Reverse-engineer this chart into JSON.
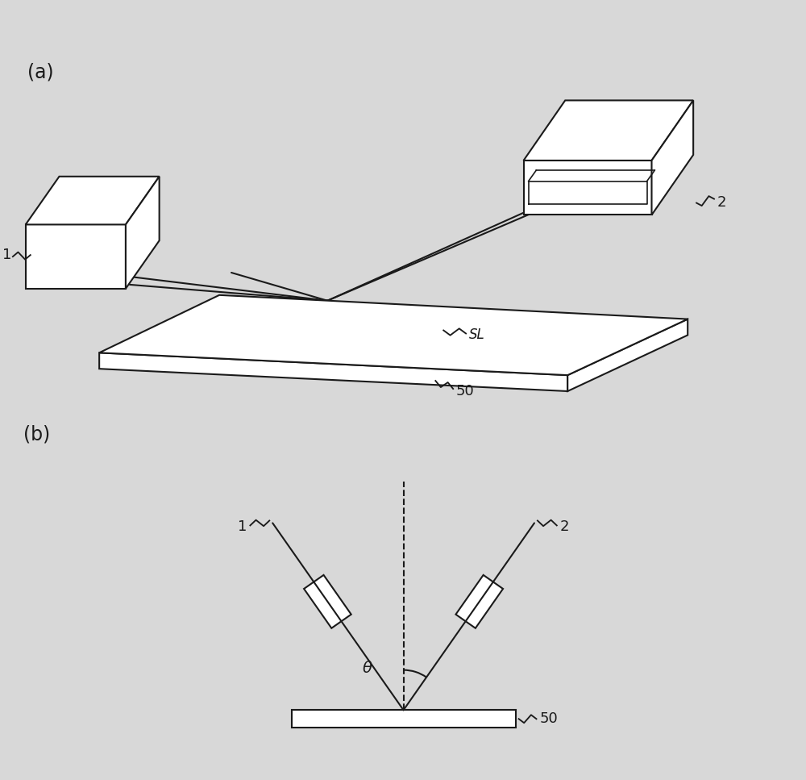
{
  "bg_color": "#d8d8d8",
  "line_color": "#1a1a1a",
  "line_width": 1.5,
  "fig_width": 10.0,
  "fig_height": 9.67,
  "label_a": "(a)",
  "label_b": "(b)",
  "label_1_a": "1",
  "label_2_a": "2",
  "label_50_a": "50",
  "label_sl": "SL",
  "label_1_b": "1",
  "label_2_b": "2",
  "label_50_b": "50",
  "label_theta": "θ"
}
